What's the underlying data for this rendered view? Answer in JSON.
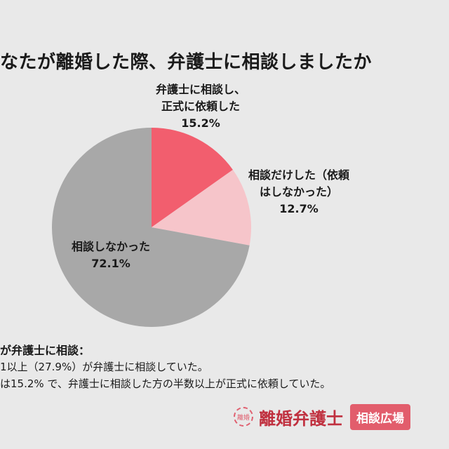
{
  "title": "なたが離婚した際、弁護士に相談しましたか",
  "chart_data": {
    "type": "pie",
    "start_angle": "12 o'clock, clockwise",
    "slices": [
      {
        "label": [
          "弁護士に相談し、",
          "正式に依頼した"
        ],
        "value": 15.2,
        "value_label": "15.2%",
        "color": "#f25e6e"
      },
      {
        "label": [
          "相談だけした（依頼",
          "はしなかった）"
        ],
        "value": 12.7,
        "value_label": "12.7%",
        "color": "#f6c5ca"
      },
      {
        "label": [
          "相談しなかった"
        ],
        "value": 72.1,
        "value_label": "72.1%",
        "color": "#a8a8a8"
      }
    ]
  },
  "notes": {
    "heading": "が弁護士に相談：",
    "line1": "1以上（27.9%）が弁護士に相談していた。",
    "line2": "は15.2% で、弁護士に相談した方の半数以上が正式に依頼していた。"
  },
  "logo": {
    "emblem": "離婚",
    "brand": "離婚弁護士",
    "badge": "相談広場"
  }
}
